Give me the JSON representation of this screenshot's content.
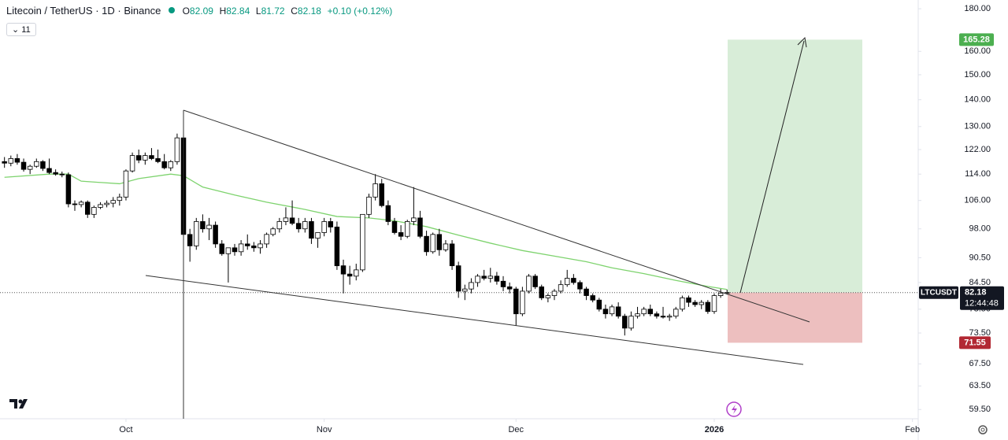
{
  "chart_data": {
    "type": "candlestick",
    "title": "Litecoin / TetherUS · 1D · Binance",
    "ohlc_keys": [
      "O",
      "H",
      "L",
      "C"
    ],
    "change": "+0.10 (+0.12%)",
    "indicators_collapsed": 11,
    "symbol_tag": "LTCUSDT",
    "countdown": "12:44:48",
    "log_scale": true,
    "up_color": "#ffffff",
    "down_color": "#000000",
    "ylim": [
      58.0,
      184.4
    ],
    "yticks": [
      {
        "value": 180,
        "label": "180.00"
      },
      {
        "value": 160,
        "label": "160.00"
      },
      {
        "value": 150,
        "label": "150.00"
      },
      {
        "value": 140,
        "label": "140.00"
      },
      {
        "value": 130,
        "label": "130.00"
      },
      {
        "value": 122,
        "label": "122.00"
      },
      {
        "value": 114,
        "label": "114.00"
      },
      {
        "value": 106,
        "label": "106.00"
      },
      {
        "value": 98,
        "label": "98.00"
      },
      {
        "value": 90.5,
        "label": "90.50"
      },
      {
        "value": 84.5,
        "label": "84.50"
      },
      {
        "value": 78.5,
        "label": "78.50"
      },
      {
        "value": 73.5,
        "label": "73.50"
      },
      {
        "value": 67.5,
        "label": "67.50"
      },
      {
        "value": 63.5,
        "label": "63.50"
      },
      {
        "value": 59.5,
        "label": "59.50"
      }
    ],
    "xlim": [
      -0.7,
      142.9
    ],
    "xticks": [
      {
        "value": 19,
        "label": "Oct"
      },
      {
        "value": 50,
        "label": "Nov"
      },
      {
        "value": 80,
        "label": "Dec"
      },
      {
        "value": 111,
        "label": "2026"
      },
      {
        "value": 142,
        "label": "Feb"
      }
    ],
    "values": [
      [
        118,
        119.5,
        116,
        117.5
      ],
      [
        117.5,
        120,
        116.5,
        119
      ],
      [
        119,
        120.5,
        117,
        117.8
      ],
      [
        117.8,
        119,
        114.8,
        115.5
      ],
      [
        115.5,
        117,
        114,
        116.5
      ],
      [
        116.5,
        119,
        116,
        118
      ],
      [
        118,
        118.5,
        115,
        115.8
      ],
      [
        115.8,
        119,
        114,
        114.5
      ],
      [
        114.5,
        115.5,
        113.5,
        114
      ],
      [
        114,
        114.8,
        113,
        113.8
      ],
      [
        113.8,
        114.5,
        104,
        105
      ],
      [
        105,
        106,
        103,
        104.8
      ],
      [
        104.8,
        106,
        104,
        105.5
      ],
      [
        105.5,
        106,
        101,
        102
      ],
      [
        102,
        104.5,
        101,
        104
      ],
      [
        104,
        105.5,
        103.5,
        104.8
      ],
      [
        104.8,
        106,
        104,
        105.2
      ],
      [
        105.2,
        107,
        104,
        106
      ],
      [
        106,
        108,
        104.5,
        107
      ],
      [
        107,
        115.5,
        106,
        115
      ],
      [
        115,
        121,
        114.5,
        120
      ],
      [
        120,
        122,
        117.5,
        118.5
      ],
      [
        118.5,
        121,
        117,
        120
      ],
      [
        120,
        122.5,
        118.5,
        119
      ],
      [
        119,
        122,
        117.5,
        118
      ],
      [
        118,
        120.5,
        115.5,
        116
      ],
      [
        116,
        118.5,
        115,
        118
      ],
      [
        118,
        127.5,
        117,
        126
      ],
      [
        126,
        127,
        95,
        96.5
      ],
      [
        96.5,
        98,
        89.5,
        93.5
      ],
      [
        93.5,
        101,
        92.5,
        100
      ],
      [
        100,
        102,
        97,
        98
      ],
      [
        98,
        101,
        95,
        99
      ],
      [
        99,
        100,
        93,
        94
      ],
      [
        94,
        95,
        91,
        91.5
      ],
      [
        91.5,
        93,
        84.5,
        93
      ],
      [
        93,
        94,
        91,
        92
      ],
      [
        92,
        95,
        91,
        94
      ],
      [
        94,
        96.5,
        92.5,
        93.5
      ],
      [
        93.5,
        94.5,
        92,
        93
      ],
      [
        93,
        95,
        91.5,
        94
      ],
      [
        94,
        97,
        93,
        96.5
      ],
      [
        96.5,
        98.5,
        96,
        98
      ],
      [
        98,
        101,
        97,
        100
      ],
      [
        100,
        104,
        99,
        101
      ],
      [
        101,
        106,
        99,
        99.5
      ],
      [
        99.5,
        101,
        97,
        98
      ],
      [
        98,
        101,
        97,
        100
      ],
      [
        100,
        101,
        94,
        95.5
      ],
      [
        95.5,
        97,
        93,
        97
      ],
      [
        97,
        101,
        96,
        100
      ],
      [
        100,
        101,
        97,
        98.5
      ],
      [
        98.5,
        100,
        87.5,
        88.5
      ],
      [
        88.5,
        90,
        82,
        86.5
      ],
      [
        86.5,
        88.5,
        84,
        86
      ],
      [
        86,
        89,
        85,
        87.5
      ],
      [
        87.5,
        102,
        87,
        102
      ],
      [
        102,
        108,
        101,
        107
      ],
      [
        107,
        114,
        106,
        111
      ],
      [
        111,
        112.5,
        104,
        104.5
      ],
      [
        104.5,
        106,
        99,
        100
      ],
      [
        100,
        101,
        96.5,
        97
      ],
      [
        97,
        99,
        95,
        96
      ],
      [
        96,
        100.5,
        95.5,
        100
      ],
      [
        100,
        110,
        99,
        101
      ],
      [
        101,
        103,
        95.5,
        96
      ],
      [
        96,
        97.5,
        91,
        92
      ],
      [
        92,
        97,
        91.5,
        96.5
      ],
      [
        96.5,
        98,
        91,
        92.5
      ],
      [
        92.5,
        95,
        92,
        94
      ],
      [
        94,
        95,
        87.5,
        88.5
      ],
      [
        88.5,
        89.5,
        81,
        82.5
      ],
      [
        82.5,
        84,
        80.5,
        83
      ],
      [
        83,
        85.5,
        82,
        84.5
      ],
      [
        84.5,
        86.5,
        83.5,
        86
      ],
      [
        86,
        87.5,
        85,
        85.5
      ],
      [
        85.5,
        88,
        84.5,
        86
      ],
      [
        86,
        87,
        84,
        84.8
      ],
      [
        84.8,
        86,
        82.5,
        83.5
      ],
      [
        83.5,
        84.5,
        82,
        83
      ],
      [
        83,
        83.5,
        75,
        77.5
      ],
      [
        77.5,
        83.5,
        77,
        82.5
      ],
      [
        82.5,
        86.5,
        82,
        86
      ],
      [
        86,
        86.5,
        83,
        83.5
      ],
      [
        83.5,
        84,
        80.5,
        81
      ],
      [
        81,
        82,
        80,
        81.5
      ],
      [
        81.5,
        83,
        80.5,
        82.5
      ],
      [
        82.5,
        85,
        82,
        84
      ],
      [
        84,
        87.5,
        83.5,
        85.5
      ],
      [
        85.5,
        86.5,
        84,
        84.5
      ],
      [
        84.5,
        85,
        82,
        83
      ],
      [
        83,
        83.5,
        80.5,
        81.5
      ],
      [
        81.5,
        82,
        80,
        80.5
      ],
      [
        80.5,
        81,
        78,
        78.5
      ],
      [
        78.5,
        79.5,
        76.5,
        77.5
      ],
      [
        77.5,
        79.5,
        77,
        79
      ],
      [
        79,
        80,
        76.5,
        77
      ],
      [
        77,
        77.5,
        73,
        74.5
      ],
      [
        74.5,
        78,
        74,
        77
      ],
      [
        77,
        79,
        76.5,
        77.5
      ],
      [
        77.5,
        79,
        77,
        78.5
      ],
      [
        78.5,
        79.5,
        77,
        77.5
      ],
      [
        77.5,
        78,
        76.5,
        77
      ],
      [
        77,
        79,
        76.5,
        76.8
      ],
      [
        76.8,
        77.5,
        76,
        77
      ],
      [
        77,
        79,
        76.5,
        78.5
      ],
      [
        78.5,
        81.5,
        78,
        81
      ],
      [
        81,
        81.5,
        79,
        80
      ],
      [
        80,
        80.5,
        79,
        79.5
      ],
      [
        79.5,
        80.5,
        78.5,
        80
      ],
      [
        80,
        80.5,
        77.5,
        78
      ],
      [
        78,
        82,
        77.5,
        81.5
      ],
      [
        81.5,
        83,
        81,
        82.08
      ],
      [
        82.09,
        82.84,
        81.72,
        82.18
      ]
    ],
    "moving_average": {
      "color": "#7ed36e",
      "x": [
        0,
        7,
        10,
        12,
        18,
        21,
        26,
        28,
        31,
        36,
        41,
        47,
        52,
        57,
        61,
        66,
        71,
        76,
        81,
        86,
        91,
        95,
        100,
        105,
        110,
        113
      ],
      "values": [
        113,
        114,
        114,
        111.8,
        111,
        112.6,
        114,
        113.5,
        110,
        107.6,
        105.5,
        103.4,
        101.4,
        101,
        100.2,
        98.6,
        96.3,
        94.2,
        92.3,
        90.9,
        89.5,
        88,
        86.6,
        85,
        83.6,
        82.9
      ]
    },
    "position": {
      "target": 165.28,
      "stop": 71.55,
      "target_color": "#d4ebd4",
      "stop_color": "#ebb8b8"
    }
  }
}
